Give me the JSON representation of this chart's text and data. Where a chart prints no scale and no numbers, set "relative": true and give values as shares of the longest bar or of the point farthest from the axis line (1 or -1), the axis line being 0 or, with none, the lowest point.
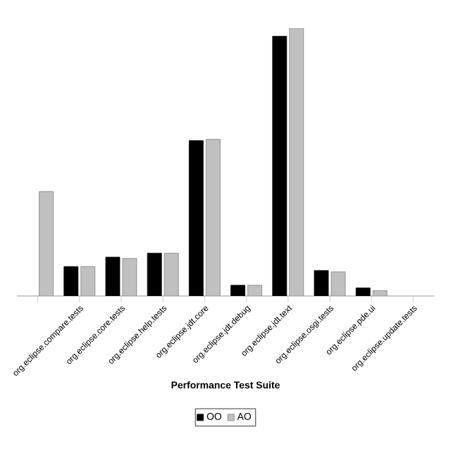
{
  "chart_data": {
    "type": "bar",
    "relative": true,
    "xlabel": "Performance Test Suite",
    "legend": "bottom",
    "categories": [
      null,
      "org.eclipse.compare.tests",
      "org.eclipse.core.tests",
      "org.eclipse.help.tests",
      "org.eclipse.jdt.core",
      "org.eclipse.jdt.debug",
      "org.eclipse.jdt.text",
      "org.eclipse.osgi.tests",
      "org.eclipse.pde.ui",
      "org.eclipse.update.tests"
    ],
    "series": [
      {
        "name": "OO",
        "color": "#000000",
        "values": [
          null,
          0.11,
          0.145,
          0.16,
          0.58,
          0.04,
          0.97,
          0.095,
          0.03,
          null
        ]
      },
      {
        "name": "AO",
        "color": "#c0c0c0",
        "values": [
          0.39,
          0.11,
          0.14,
          0.16,
          0.585,
          0.04,
          1.0,
          0.09,
          0.02,
          null
        ]
      }
    ]
  }
}
